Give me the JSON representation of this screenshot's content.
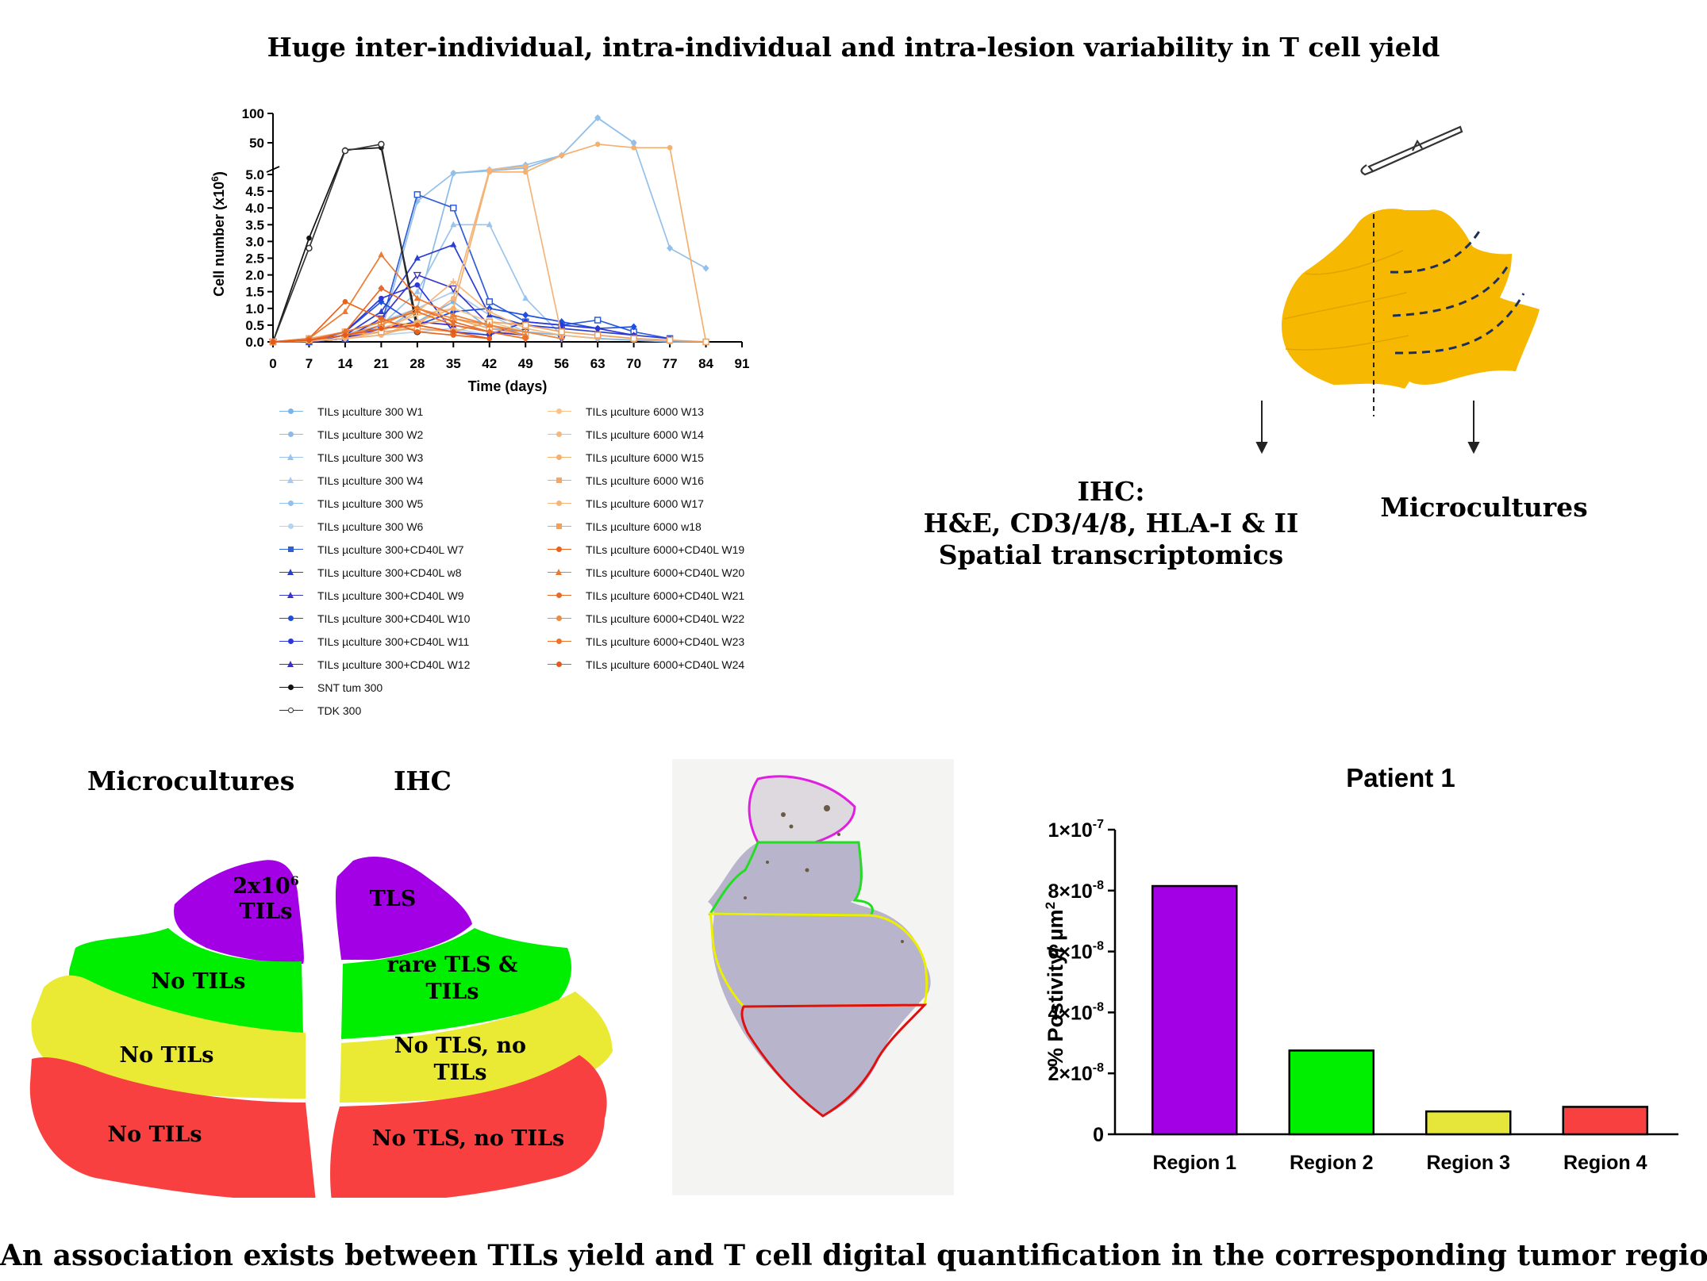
{
  "header": {
    "title": "Huge inter-individual, intra-individual and intra-lesion variability in T cell yield"
  },
  "footer": {
    "caption": "An association exists between TILs yield and T cell digital quantification in the corresponding tumor region"
  },
  "schematic": {
    "left_label_1": "IHC:",
    "left_label_2": "H&E, CD3/4/8, HLA-I & II",
    "left_label_3": "Spatial transcriptomics",
    "right_label": "Microcultures",
    "colors": {
      "tumor": "#f6b800",
      "cut": "#1b2f5a"
    }
  },
  "regions_map": {
    "left_title": "Microcultures",
    "right_title": "IHC",
    "left": [
      {
        "label_1": "2x10",
        "sup": "6",
        "label_2": "TILs",
        "color": "#a300e6"
      },
      {
        "label": "No TILs",
        "color": "#00ee00"
      },
      {
        "label": "No TILs",
        "color": "#eaea35"
      },
      {
        "label": "No TILs",
        "color": "#f94040"
      }
    ],
    "right": [
      {
        "label": "TLS",
        "color": "#a300e6"
      },
      {
        "label_1": "rare TLS &",
        "label_2": "TILs",
        "color": "#00ee00"
      },
      {
        "label_1": "No TLS,  no",
        "label_2": "TILs",
        "color": "#eaea35"
      },
      {
        "label": "No TLS, no TILs",
        "color": "#f94040"
      }
    ]
  },
  "slide": {
    "outline_colors": [
      "#e020e0",
      "#22dd22",
      "#eeee00",
      "#dd1111"
    ]
  },
  "chart_data": [
    {
      "type": "line",
      "xlabel": "Time (days)",
      "ylabel": "Cell number (x10",
      "ylabel_sup": "6",
      "ylabel_close": ")",
      "x_ticks": [
        "0",
        "7",
        "14",
        "21",
        "28",
        "35",
        "42",
        "49",
        "56",
        "63",
        "70",
        "77",
        "84",
        "91"
      ],
      "y_ticks_lower": [
        "0.0",
        "0.5",
        "1.0",
        "1.5",
        "2.0",
        "2.5",
        "3.0",
        "3.5",
        "4.0",
        "4.5",
        "5.0"
      ],
      "y_ticks_upper": [
        "50",
        "100"
      ],
      "axis_break": true,
      "series": [
        {
          "name": "TILs µculture 300 W1",
          "color": "#7fb3e6",
          "marker": "circle",
          "x": [
            0,
            7,
            14,
            21,
            28,
            35,
            42,
            49,
            56,
            63,
            70,
            77,
            84
          ],
          "y": [
            0,
            0.05,
            0.1,
            0.2,
            0.6,
            1.2,
            0.4,
            0.3,
            0.2,
            0.1,
            0.05,
            0,
            0
          ]
        },
        {
          "name": "TILs µculture 300 W2",
          "color": "#8cbbe8",
          "marker": "circle",
          "x": [
            0,
            7,
            14,
            21,
            28,
            35,
            42,
            49,
            56,
            63,
            70
          ],
          "y": [
            0,
            0.05,
            0.1,
            0.3,
            1.0,
            5.5,
            6.5,
            8,
            20,
            90,
            50
          ]
        },
        {
          "name": "TILs µculture 300 W3",
          "color": "#9ac4ec",
          "marker": "triangle",
          "x": [
            0,
            7,
            14,
            21,
            28,
            35,
            42,
            49,
            56
          ],
          "y": [
            0,
            0.02,
            0.1,
            0.5,
            1.5,
            3.5,
            3.5,
            1.3,
            0.2
          ]
        },
        {
          "name": "TILs µculture 300 W4",
          "color": "#a7cbee",
          "marker": "triangle",
          "x": [
            0,
            7,
            14,
            21,
            28,
            35,
            42,
            49
          ],
          "y": [
            0,
            0.05,
            0.2,
            0.6,
            1.0,
            1.5,
            0.8,
            0.3
          ]
        },
        {
          "name": "TILs µculture 300 W5",
          "color": "#93c0ea",
          "marker": "diamond",
          "x": [
            0,
            7,
            14,
            21,
            28,
            35,
            42,
            49,
            56,
            63,
            70,
            77,
            84
          ],
          "y": [
            0,
            0.02,
            0.1,
            0.3,
            4.2,
            5.5,
            7,
            10,
            20,
            90,
            50,
            2.8,
            2.2
          ]
        },
        {
          "name": "TILs µculture 300 W6",
          "color": "#b5d4f1",
          "marker": "circle",
          "x": [
            0,
            7,
            14,
            21,
            28,
            35,
            42
          ],
          "y": [
            0,
            0.05,
            0.1,
            0.2,
            0.3,
            0.4,
            0.2
          ]
        },
        {
          "name": "TILs µculture 300+CD40L W7",
          "color": "#2f5fd6",
          "marker": "square",
          "x": [
            0,
            7,
            14,
            21,
            28,
            35,
            42,
            49,
            56,
            63,
            70,
            77
          ],
          "y": [
            0,
            0,
            0.1,
            0.5,
            4.4,
            4.0,
            1.2,
            0.6,
            0.5,
            0.65,
            0.3,
            0.1
          ]
        },
        {
          "name": "TILs µculture 300+CD40L w8",
          "color": "#2a3fd0",
          "marker": "triangle",
          "x": [
            0,
            7,
            14,
            21,
            28,
            35,
            42,
            49,
            56,
            63,
            70
          ],
          "y": [
            0,
            0,
            0.2,
            0.9,
            2.5,
            2.9,
            0.8,
            0.5,
            0.4,
            0.3,
            0.2
          ]
        },
        {
          "name": "TILs µculture 300+CD40L W9",
          "color": "#3a35c8",
          "marker": "triangle-down",
          "x": [
            0,
            7,
            14,
            21,
            28,
            35,
            42,
            49,
            56
          ],
          "y": [
            0,
            0,
            0.1,
            0.7,
            2.0,
            1.6,
            0.5,
            0.3,
            0.1
          ]
        },
        {
          "name": "TILs µculture 300+CD40L W10",
          "color": "#1f4fe0",
          "marker": "diamond",
          "x": [
            0,
            7,
            14,
            21,
            28,
            35,
            42,
            49,
            56,
            63,
            70
          ],
          "y": [
            0,
            0,
            0.3,
            1.2,
            0.5,
            0.9,
            1.0,
            0.8,
            0.6,
            0.4,
            0.45
          ]
        },
        {
          "name": "TILs µculture 300+CD40L W11",
          "color": "#2d37d8",
          "marker": "circle",
          "x": [
            0,
            7,
            14,
            21,
            28,
            35,
            42,
            49,
            56,
            63,
            70,
            77
          ],
          "y": [
            0,
            0,
            0.3,
            1.3,
            1.7,
            0.3,
            0.2,
            0.6,
            0.5,
            0.4,
            0.2,
            0.1
          ]
        },
        {
          "name": "TILs µculture 300+CD40L W12",
          "color": "#3b2fc4",
          "marker": "star",
          "x": [
            0,
            7,
            14,
            21,
            28,
            35,
            42,
            49
          ],
          "y": [
            0,
            0,
            0.1,
            0.4,
            0.6,
            0.5,
            0.3,
            0.2
          ]
        },
        {
          "name": "SNT tum 300",
          "color": "#111111",
          "marker": "circle",
          "x": [
            0,
            7,
            14,
            21,
            28
          ],
          "y": [
            0,
            3.1,
            30,
            35,
            0.5
          ]
        },
        {
          "name": "TDK 300",
          "color": "#333333",
          "marker": "circle-open",
          "x": [
            0,
            7,
            14,
            21,
            28
          ],
          "y": [
            0,
            2.8,
            28,
            45,
            0.3
          ]
        },
        {
          "name": "TILs µculture 6000 W13",
          "color": "#f7c48a",
          "marker": "plus",
          "x": [
            0,
            7,
            14,
            21,
            28,
            35,
            42,
            49,
            56
          ],
          "y": [
            0,
            0.05,
            0.2,
            0.4,
            0.8,
            1.0,
            0.6,
            0.3,
            0.1
          ]
        },
        {
          "name": "TILs µculture 6000 W14",
          "color": "#f6b77a",
          "marker": "cross",
          "x": [
            0,
            7,
            14,
            21,
            28,
            35,
            42,
            49,
            56,
            63
          ],
          "y": [
            0,
            0.02,
            0.1,
            0.3,
            0.9,
            1.8,
            0.9,
            0.4,
            0.2,
            0.1
          ]
        },
        {
          "name": "TILs µculture 6000 W15",
          "color": "#f4b06e",
          "marker": "circle",
          "x": [
            0,
            7,
            14,
            21,
            28,
            35,
            42,
            49,
            56,
            63,
            70,
            77,
            84
          ],
          "y": [
            0,
            0.05,
            0.1,
            0.2,
            0.6,
            1.0,
            6,
            6,
            20,
            45,
            35,
            35,
            0
          ]
        },
        {
          "name": "TILs µculture 6000 W16",
          "color": "#f2a868",
          "marker": "square",
          "x": [
            0,
            7,
            14,
            21,
            28,
            35,
            42,
            49
          ],
          "y": [
            0,
            0.1,
            0.3,
            0.6,
            0.5,
            0.7,
            0.4,
            0.2
          ]
        },
        {
          "name": "TILs µculture 6000 W17",
          "color": "#f4b57c",
          "marker": "circle",
          "x": [
            0,
            7,
            14,
            21,
            28,
            35,
            42,
            49,
            56
          ],
          "y": [
            0,
            0.02,
            0.1,
            0.2,
            0.5,
            1.3,
            7,
            9,
            0.2
          ]
        },
        {
          "name": "TILs µculture 6000 w18",
          "color": "#f0a05a",
          "marker": "square",
          "x": [
            0,
            7,
            14,
            21,
            28,
            35,
            42,
            49,
            56,
            63,
            70,
            77,
            84
          ],
          "y": [
            0,
            0.05,
            0.2,
            0.3,
            0.4,
            0.3,
            0.6,
            0.5,
            0.3,
            0.2,
            0.1,
            0.05,
            0
          ]
        },
        {
          "name": "TILs µculture 6000+CD40L W19",
          "color": "#e7641f",
          "marker": "circle",
          "x": [
            0,
            7,
            14,
            21,
            28,
            35,
            42
          ],
          "y": [
            0,
            0.1,
            1.2,
            0.7,
            0.3,
            0.2,
            0.1
          ]
        },
        {
          "name": "TILs µculture 6000+CD40L W20",
          "color": "#ec7b2f",
          "marker": "tri-star",
          "x": [
            0,
            7,
            14,
            21,
            28,
            35,
            42,
            49
          ],
          "y": [
            0,
            0.1,
            0.9,
            2.6,
            1.3,
            0.8,
            0.5,
            0.2
          ]
        },
        {
          "name": "TILs µculture 6000+CD40L W21",
          "color": "#e86a28",
          "marker": "diamond",
          "x": [
            0,
            7,
            14,
            21,
            28,
            35,
            42,
            49
          ],
          "y": [
            0,
            0.05,
            0.3,
            1.6,
            1.0,
            0.6,
            0.3,
            0.1
          ]
        },
        {
          "name": "TILs µculture 6000+CD40L W22",
          "color": "#f08a3c",
          "marker": "dash",
          "x": [
            0,
            7,
            14,
            21,
            28,
            35,
            42,
            49,
            56
          ],
          "y": [
            0,
            0.05,
            0.2,
            0.5,
            1.0,
            0.7,
            0.5,
            0.3,
            0.1
          ]
        },
        {
          "name": "TILs µculture 6000+CD40L W23",
          "color": "#e9742a",
          "marker": "plus",
          "x": [
            0,
            7,
            14,
            21,
            28,
            35,
            42,
            49
          ],
          "y": [
            0,
            0.05,
            0.3,
            0.6,
            0.9,
            0.5,
            0.3,
            0.1
          ]
        },
        {
          "name": "TILs µculture 6000+CD40L W24",
          "color": "#e55a1a",
          "marker": "circle",
          "x": [
            0,
            7,
            14,
            21,
            28,
            35,
            42
          ],
          "y": [
            0,
            0.05,
            0.2,
            0.4,
            0.5,
            0.3,
            0.1
          ]
        }
      ]
    },
    {
      "type": "bar",
      "title": "Patient 1",
      "ylabel": "% Postivity/ µm",
      "ylabel_sup": "2",
      "categories": [
        "Region 1",
        "Region 2",
        "Region 3",
        "Region 4"
      ],
      "values": [
        8.15e-08,
        2.75e-08,
        7.5e-09,
        9e-09
      ],
      "colors": [
        "#a300e6",
        "#00ee00",
        "#e6e63a",
        "#f94040"
      ],
      "ylim": [
        0,
        1e-07
      ],
      "y_ticks": [
        {
          "mant": "0",
          "exp": ""
        },
        {
          "mant": "2×10",
          "exp": "-8"
        },
        {
          "mant": "4×10",
          "exp": "-8"
        },
        {
          "mant": "6×10",
          "exp": "-8"
        },
        {
          "mant": "8×10",
          "exp": "-8"
        },
        {
          "mant": "1×10",
          "exp": "-7"
        }
      ]
    }
  ]
}
